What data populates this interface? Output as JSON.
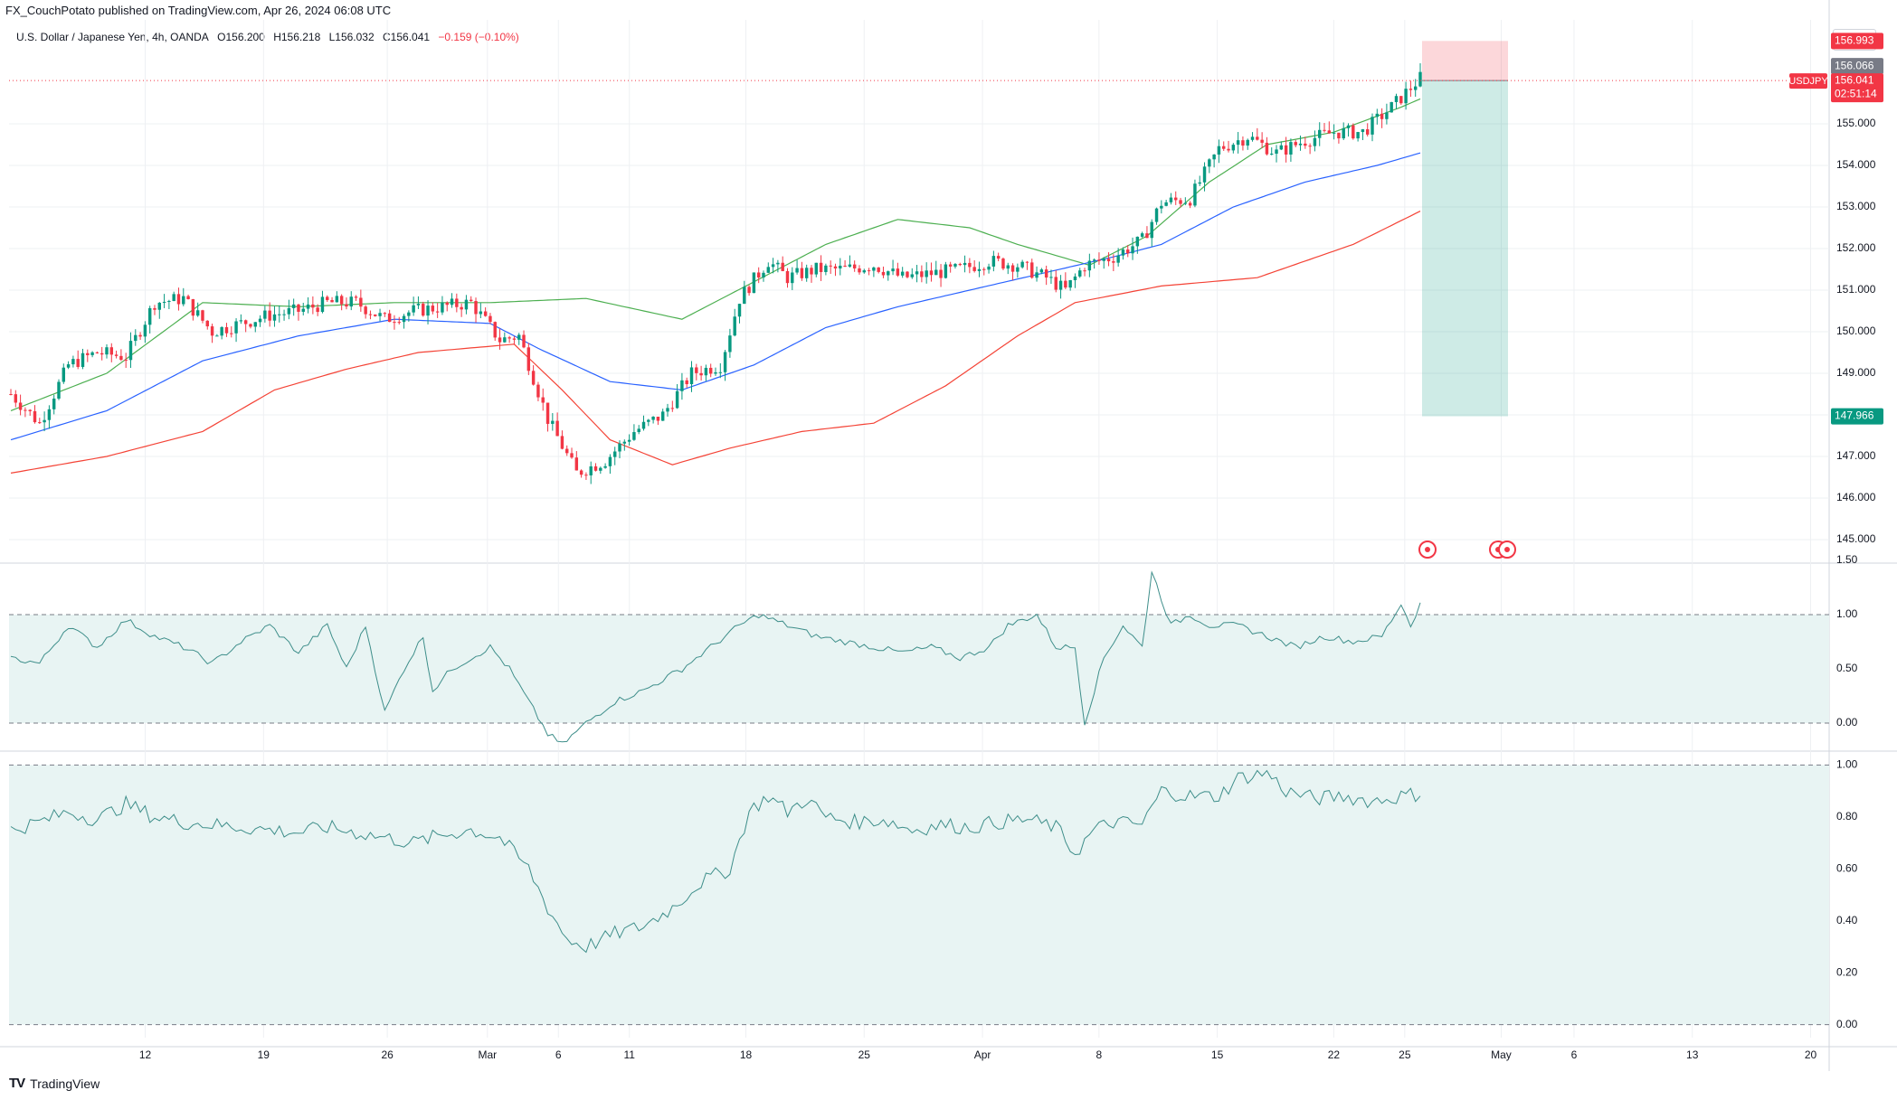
{
  "header": {
    "publisher": "FX_CouchPotato published on TradingView.com, Apr 26, 2024 06:08 UTC"
  },
  "symbol": {
    "name": "U.S. Dollar / Japanese Yen, 4h, OANDA",
    "open": "O156.200",
    "high": "H156.218",
    "low": "L156.032",
    "close": "C156.041",
    "change": "−0.159 (−0.10%)"
  },
  "currency": "JPY",
  "footer": {
    "brand": "TradingView"
  },
  "colors": {
    "up": "#089981",
    "down": "#f23645",
    "ma_fast": "#4caf50",
    "ma_mid": "#2962ff",
    "ma_slow": "#f44336",
    "grid": "#eef0f3",
    "fill": "#e8f4f3",
    "axis_text": "#131722"
  },
  "chart_data": {
    "type": "candlestick",
    "timeframe": "4h",
    "x_labels": [
      "12",
      "19",
      "26",
      "Mar",
      "6",
      "11",
      "18",
      "25",
      "Apr",
      "8",
      "15",
      "22",
      "25",
      "May",
      "6",
      "13",
      "20"
    ],
    "price_axis": {
      "ylim": [
        144.5,
        157.5
      ],
      "ticks": [
        "145.000",
        "146.000",
        "147.000",
        "148.000",
        "149.000",
        "150.000",
        "151.000",
        "152.000",
        "153.000",
        "154.000",
        "155.000"
      ]
    },
    "price_series": {
      "anchors": [
        [
          0,
          148.5
        ],
        [
          6,
          147.8
        ],
        [
          12,
          149.2
        ],
        [
          18,
          149.5
        ],
        [
          24,
          149.4
        ],
        [
          30,
          150.7
        ],
        [
          36,
          150.8
        ],
        [
          42,
          150.0
        ],
        [
          48,
          150.2
        ],
        [
          54,
          150.4
        ],
        [
          60,
          150.5
        ],
        [
          66,
          150.7
        ],
        [
          72,
          150.7
        ],
        [
          78,
          150.3
        ],
        [
          84,
          150.5
        ],
        [
          90,
          150.6
        ],
        [
          96,
          150.7
        ],
        [
          102,
          149.8
        ],
        [
          106,
          149.9
        ],
        [
          112,
          147.9
        ],
        [
          118,
          146.6
        ],
        [
          124,
          146.9
        ],
        [
          130,
          147.6
        ],
        [
          136,
          148.0
        ],
        [
          142,
          149.0
        ],
        [
          148,
          149.2
        ],
        [
          152,
          150.8
        ],
        [
          158,
          151.7
        ],
        [
          162,
          151.3
        ],
        [
          168,
          151.5
        ],
        [
          174,
          151.5
        ],
        [
          180,
          151.6
        ],
        [
          186,
          151.3
        ],
        [
          192,
          151.4
        ],
        [
          198,
          151.5
        ],
        [
          204,
          151.7
        ],
        [
          210,
          151.6
        ],
        [
          216,
          151.3
        ],
        [
          220,
          151.0
        ],
        [
          224,
          151.6
        ],
        [
          230,
          151.8
        ],
        [
          236,
          152.2
        ],
        [
          240,
          153.1
        ],
        [
          246,
          153.2
        ],
        [
          252,
          154.4
        ],
        [
          258,
          154.7
        ],
        [
          264,
          154.3
        ],
        [
          270,
          154.6
        ],
        [
          276,
          154.8
        ],
        [
          282,
          154.8
        ],
        [
          288,
          155.4
        ],
        [
          294,
          156.1
        ]
      ]
    },
    "moving_averages": [
      {
        "name": "MA fast",
        "color": "#4caf50",
        "anchors": [
          [
            0,
            148.1
          ],
          [
            20,
            149.0
          ],
          [
            40,
            150.7
          ],
          [
            60,
            150.6
          ],
          [
            80,
            150.7
          ],
          [
            100,
            150.7
          ],
          [
            120,
            150.8
          ],
          [
            140,
            150.3
          ],
          [
            155,
            151.2
          ],
          [
            170,
            152.1
          ],
          [
            185,
            152.7
          ],
          [
            200,
            152.5
          ],
          [
            210,
            152.1
          ],
          [
            225,
            151.6
          ],
          [
            237,
            152.3
          ],
          [
            250,
            153.6
          ],
          [
            262,
            154.5
          ],
          [
            276,
            154.8
          ],
          [
            290,
            155.4
          ],
          [
            294,
            155.6
          ]
        ]
      },
      {
        "name": "MA mid",
        "color": "#2962ff",
        "anchors": [
          [
            0,
            147.4
          ],
          [
            20,
            148.1
          ],
          [
            40,
            149.3
          ],
          [
            60,
            149.9
          ],
          [
            80,
            150.3
          ],
          [
            100,
            150.2
          ],
          [
            110,
            149.6
          ],
          [
            125,
            148.8
          ],
          [
            140,
            148.6
          ],
          [
            155,
            149.2
          ],
          [
            170,
            150.1
          ],
          [
            185,
            150.6
          ],
          [
            200,
            151.0
          ],
          [
            215,
            151.4
          ],
          [
            230,
            151.8
          ],
          [
            240,
            152.1
          ],
          [
            255,
            153.0
          ],
          [
            270,
            153.6
          ],
          [
            285,
            154.0
          ],
          [
            294,
            154.3
          ]
        ]
      },
      {
        "name": "MA slow",
        "color": "#f44336",
        "anchors": [
          [
            0,
            146.6
          ],
          [
            20,
            147.0
          ],
          [
            40,
            147.6
          ],
          [
            55,
            148.6
          ],
          [
            70,
            149.1
          ],
          [
            85,
            149.5
          ],
          [
            105,
            149.7
          ],
          [
            115,
            148.6
          ],
          [
            125,
            147.4
          ],
          [
            138,
            146.8
          ],
          [
            150,
            147.2
          ],
          [
            165,
            147.6
          ],
          [
            180,
            147.8
          ],
          [
            195,
            148.7
          ],
          [
            210,
            149.9
          ],
          [
            222,
            150.7
          ],
          [
            240,
            151.1
          ],
          [
            260,
            151.3
          ],
          [
            280,
            152.1
          ],
          [
            294,
            152.9
          ]
        ]
      }
    ],
    "last_price": "156.041",
    "last_price_label": "USDJPY",
    "countdown": "02:51:14",
    "high_marker": "156.066",
    "position": {
      "type": "short",
      "entry": 156.041,
      "stop": "156.993",
      "target": "147.966"
    },
    "indicator1": {
      "ylim": [
        -0.25,
        1.45
      ],
      "levels": [
        1.0,
        0.0
      ],
      "ticks": [
        "1.50",
        "1.00",
        "0.50",
        "0.00"
      ],
      "anchors": [
        [
          0,
          0.6
        ],
        [
          6,
          0.55
        ],
        [
          12,
          0.9
        ],
        [
          18,
          0.7
        ],
        [
          24,
          0.95
        ],
        [
          30,
          0.8
        ],
        [
          36,
          0.7
        ],
        [
          42,
          0.55
        ],
        [
          48,
          0.75
        ],
        [
          54,
          0.9
        ],
        [
          60,
          0.65
        ],
        [
          66,
          0.9
        ],
        [
          70,
          0.5
        ],
        [
          74,
          0.9
        ],
        [
          78,
          0.1
        ],
        [
          82,
          0.5
        ],
        [
          86,
          0.8
        ],
        [
          88,
          0.3
        ],
        [
          92,
          0.5
        ],
        [
          96,
          0.6
        ],
        [
          100,
          0.7
        ],
        [
          104,
          0.5
        ],
        [
          108,
          0.2
        ],
        [
          112,
          -0.1
        ],
        [
          115,
          -0.2
        ],
        [
          120,
          0.0
        ],
        [
          126,
          0.2
        ],
        [
          132,
          0.3
        ],
        [
          140,
          0.5
        ],
        [
          146,
          0.7
        ],
        [
          152,
          0.9
        ],
        [
          156,
          1.0
        ],
        [
          162,
          0.9
        ],
        [
          168,
          0.8
        ],
        [
          174,
          0.75
        ],
        [
          180,
          0.7
        ],
        [
          186,
          0.65
        ],
        [
          192,
          0.7
        ],
        [
          198,
          0.6
        ],
        [
          204,
          0.7
        ],
        [
          208,
          0.9
        ],
        [
          214,
          1.0
        ],
        [
          218,
          0.7
        ],
        [
          222,
          0.7
        ],
        [
          224,
          0.0
        ],
        [
          228,
          0.6
        ],
        [
          232,
          0.9
        ],
        [
          236,
          0.7
        ],
        [
          238,
          1.4
        ],
        [
          242,
          0.9
        ],
        [
          246,
          1.0
        ],
        [
          250,
          0.9
        ],
        [
          256,
          0.9
        ],
        [
          262,
          0.8
        ],
        [
          268,
          0.7
        ],
        [
          274,
          0.8
        ],
        [
          280,
          0.75
        ],
        [
          286,
          0.8
        ],
        [
          290,
          1.1
        ],
        [
          292,
          0.9
        ],
        [
          294,
          1.1
        ]
      ]
    },
    "indicator2": {
      "ylim": [
        -0.05,
        1.05
      ],
      "levels": [
        1.0,
        0.0
      ],
      "ticks": [
        "1.00",
        "0.80",
        "0.60",
        "0.40",
        "0.20",
        "0.00"
      ],
      "anchors": [
        [
          0,
          0.75
        ],
        [
          6,
          0.78
        ],
        [
          12,
          0.82
        ],
        [
          18,
          0.79
        ],
        [
          24,
          0.85
        ],
        [
          30,
          0.8
        ],
        [
          36,
          0.78
        ],
        [
          42,
          0.77
        ],
        [
          48,
          0.76
        ],
        [
          54,
          0.75
        ],
        [
          60,
          0.74
        ],
        [
          66,
          0.76
        ],
        [
          72,
          0.74
        ],
        [
          78,
          0.72
        ],
        [
          84,
          0.7
        ],
        [
          90,
          0.73
        ],
        [
          96,
          0.75
        ],
        [
          102,
          0.72
        ],
        [
          108,
          0.6
        ],
        [
          112,
          0.45
        ],
        [
          116,
          0.33
        ],
        [
          120,
          0.3
        ],
        [
          126,
          0.35
        ],
        [
          132,
          0.38
        ],
        [
          138,
          0.45
        ],
        [
          144,
          0.55
        ],
        [
          150,
          0.6
        ],
        [
          154,
          0.82
        ],
        [
          158,
          0.88
        ],
        [
          162,
          0.82
        ],
        [
          166,
          0.87
        ],
        [
          170,
          0.8
        ],
        [
          176,
          0.78
        ],
        [
          182,
          0.79
        ],
        [
          188,
          0.75
        ],
        [
          194,
          0.77
        ],
        [
          200,
          0.76
        ],
        [
          206,
          0.78
        ],
        [
          212,
          0.79
        ],
        [
          218,
          0.76
        ],
        [
          222,
          0.66
        ],
        [
          226,
          0.75
        ],
        [
          230,
          0.78
        ],
        [
          236,
          0.77
        ],
        [
          240,
          0.9
        ],
        [
          246,
          0.88
        ],
        [
          252,
          0.88
        ],
        [
          256,
          0.95
        ],
        [
          262,
          0.97
        ],
        [
          266,
          0.9
        ],
        [
          272,
          0.87
        ],
        [
          278,
          0.88
        ],
        [
          284,
          0.86
        ],
        [
          290,
          0.88
        ],
        [
          294,
          0.89
        ]
      ]
    }
  }
}
